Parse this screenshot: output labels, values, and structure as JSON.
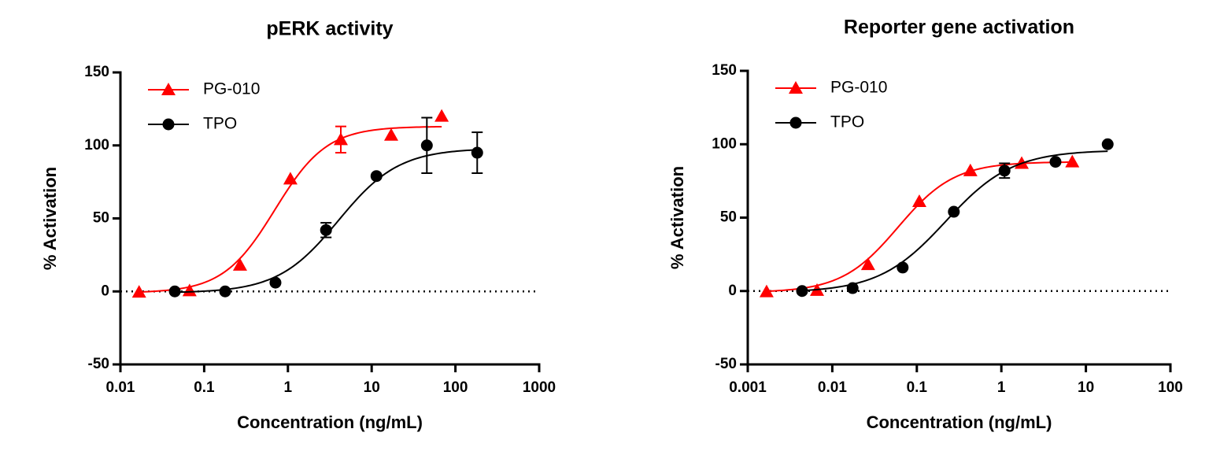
{
  "chart_data": [
    {
      "type": "dose-response",
      "title": "pERK activity",
      "x_label": "Concentration (ng/mL)",
      "y_label": "% Activation",
      "xscale": "log",
      "xlim": [
        0.01,
        1000
      ],
      "xticks": [
        0.01,
        0.1,
        1,
        10,
        100,
        1000
      ],
      "ylim": [
        -50,
        150
      ],
      "yticks": [
        -50,
        0,
        50,
        100,
        150
      ],
      "zero_line": true,
      "legend": "upper-left",
      "series": [
        {
          "name": "PG-010",
          "color": "#ff0000",
          "marker": "triangle",
          "x": [
            0.0167,
            0.0669,
            0.268,
            1.07,
            4.28,
            17.1,
            68.5
          ],
          "values": [
            -0.5,
            0.5,
            18,
            77,
            104,
            107,
            120
          ],
          "errors": [
            null,
            null,
            null,
            null,
            9,
            null,
            null
          ],
          "fit": {
            "bottom": -1,
            "top": 113,
            "ec50": 0.7,
            "hill": 1.4
          }
        },
        {
          "name": "TPO",
          "color": "#000000",
          "marker": "circle",
          "x": [
            0.0446,
            0.178,
            0.71,
            2.85,
            11.4,
            45.6,
            182
          ],
          "values": [
            0,
            0,
            6,
            42,
            79,
            100,
            95
          ],
          "errors": [
            null,
            null,
            null,
            5,
            null,
            19,
            14
          ],
          "fit": {
            "bottom": -1,
            "top": 98,
            "ec50": 4,
            "hill": 1.2
          }
        }
      ]
    },
    {
      "type": "dose-response",
      "title": "Reporter gene activation",
      "x_label": "Concentration (ng/mL)",
      "y_label": "% Activation",
      "xscale": "log",
      "xlim": [
        0.001,
        100
      ],
      "xticks": [
        0.001,
        0.01,
        0.1,
        1,
        10,
        100
      ],
      "ylim": [
        -50,
        150
      ],
      "yticks": [
        -50,
        0,
        50,
        100,
        150
      ],
      "zero_line": true,
      "legend": "upper-left",
      "series": [
        {
          "name": "PG-010",
          "color": "#ff0000",
          "marker": "triangle",
          "x": [
            0.00167,
            0.0066,
            0.0265,
            0.107,
            0.43,
            1.74,
            6.9
          ],
          "values": [
            -0.5,
            0.5,
            18,
            61,
            82,
            87,
            88
          ],
          "errors": [
            null,
            null,
            null,
            null,
            null,
            null,
            null
          ],
          "fit": {
            "bottom": -1,
            "top": 88,
            "ec50": 0.06,
            "hill": 1.3
          }
        },
        {
          "name": "TPO",
          "color": "#000000",
          "marker": "circle",
          "x": [
            0.00439,
            0.0174,
            0.068,
            0.274,
            1.09,
            4.37,
            18.1
          ],
          "values": [
            0,
            2,
            16,
            54,
            82,
            88,
            100
          ],
          "errors": [
            null,
            null,
            null,
            null,
            5,
            null,
            null
          ],
          "fit": {
            "bottom": -1,
            "top": 96,
            "ec50": 0.22,
            "hill": 1.1
          }
        }
      ]
    }
  ]
}
